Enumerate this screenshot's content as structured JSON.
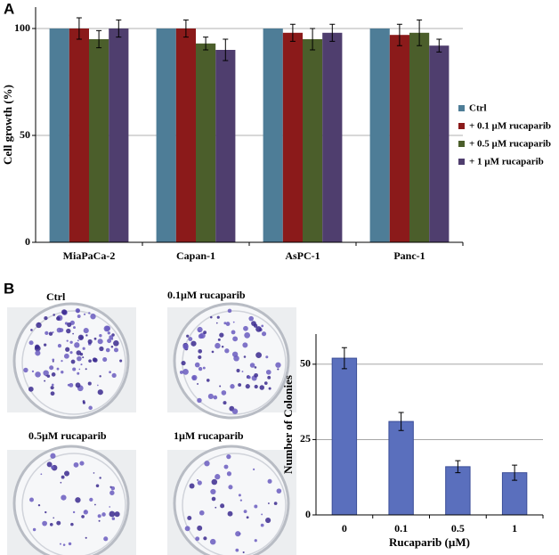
{
  "panels": [
    "A",
    "B"
  ],
  "photos": {
    "labels": [
      "Ctrl",
      "0.1µM rucaparib",
      "0.5µM rucaparib",
      "1µM rucaparib"
    ]
  },
  "chart_data": [
    {
      "type": "bar",
      "ylabel": "Cell growth (%)",
      "categories": [
        "MiaPaCa-2",
        "Capan-1",
        "AsPC-1",
        "Panc-1"
      ],
      "series": [
        {
          "name": "Ctrl",
          "color": "#4e7d97",
          "values": [
            100,
            100,
            100,
            100
          ]
        },
        {
          "name": "+ 0.1 µM rucaparib",
          "color": "#8b1a1a",
          "values": [
            100,
            100,
            98,
            97
          ],
          "errors": [
            5,
            4,
            4,
            5
          ]
        },
        {
          "name": "+ 0.5 µM rucaparib",
          "color": "#4b5e2b",
          "values": [
            95,
            93,
            95,
            98
          ],
          "errors": [
            4,
            3,
            5,
            6
          ]
        },
        {
          "name": "+ 1 µM rucaparib",
          "color": "#4f3e6e",
          "values": [
            100,
            90,
            98,
            92
          ],
          "errors": [
            4,
            5,
            4,
            3
          ]
        }
      ],
      "ylim": [
        0,
        110
      ],
      "yticks": [
        0,
        50,
        100
      ],
      "grid": true,
      "legend": "right"
    },
    {
      "type": "bar",
      "ylabel": "Number of Colonies",
      "xlabel": "Rucaparib (µM)",
      "categories": [
        "0",
        "0.1",
        "0.5",
        "1"
      ],
      "values": [
        52,
        31,
        16,
        14
      ],
      "errors": [
        3.5,
        3,
        2,
        2.5
      ],
      "color": "#5a6fbd",
      "ylim": [
        0,
        60
      ],
      "yticks": [
        0,
        25,
        50
      ],
      "grid": true
    }
  ]
}
